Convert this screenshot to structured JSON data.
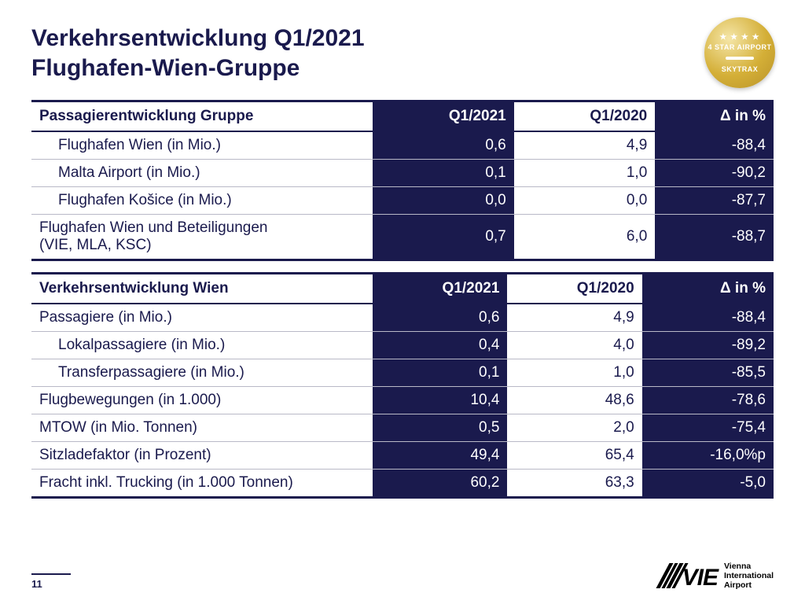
{
  "title_line1": "Verkehrsentwicklung Q1/2021",
  "title_line2": "Flughafen-Wien-Gruppe",
  "badge": {
    "top_text": "4 STAR AIRPORT",
    "bottom_text": "SKYTRAX"
  },
  "colors": {
    "brand_dark": "#1a1a4d",
    "background": "#ffffff",
    "row_border": "#b9b9c7",
    "gold1": "#f5e6a8",
    "gold2": "#d4af37"
  },
  "table1": {
    "headers": [
      "Passagierentwicklung Gruppe",
      "Q1/2021",
      "Q1/2020",
      "Δ in %"
    ],
    "highlight_cols": [
      1,
      3
    ],
    "rows": [
      {
        "label": "Flughafen Wien (in Mio.)",
        "indent": true,
        "v": [
          "0,6",
          "4,9",
          "-88,4"
        ]
      },
      {
        "label": "Malta Airport (in Mio.)",
        "indent": true,
        "v": [
          "0,1",
          "1,0",
          "-90,2"
        ]
      },
      {
        "label": "Flughafen Košice (in Mio.)",
        "indent": true,
        "v": [
          "0,0",
          "0,0",
          "-87,7"
        ]
      },
      {
        "label": "Flughafen Wien und Beteiligungen\n(VIE, MLA, KSC)",
        "indent": false,
        "v": [
          "0,7",
          "6,0",
          "-88,7"
        ]
      }
    ]
  },
  "table2": {
    "headers": [
      "Verkehrsentwicklung Wien",
      "Q1/2021",
      "Q1/2020",
      "Δ in %"
    ],
    "highlight_cols": [
      1,
      3
    ],
    "rows": [
      {
        "label": "Passagiere (in Mio.)",
        "indent": false,
        "v": [
          "0,6",
          "4,9",
          "-88,4"
        ]
      },
      {
        "label": "Lokalpassagiere (in Mio.)",
        "indent": true,
        "v": [
          "0,4",
          "4,0",
          "-89,2"
        ]
      },
      {
        "label": "Transferpassagiere (in Mio.)",
        "indent": true,
        "v": [
          "0,1",
          "1,0",
          "-85,5"
        ]
      },
      {
        "label": "Flugbewegungen (in 1.000)",
        "indent": false,
        "v": [
          "10,4",
          "48,6",
          "-78,6"
        ]
      },
      {
        "label": "MTOW (in Mio. Tonnen)",
        "indent": false,
        "v": [
          "0,5",
          "2,0",
          "-75,4"
        ]
      },
      {
        "label": "Sitzladefaktor (in Prozent)",
        "indent": false,
        "v": [
          "49,4",
          "65,4",
          "-16,0%p"
        ]
      },
      {
        "label": "Fracht inkl. Trucking (in 1.000 Tonnen)",
        "indent": false,
        "v": [
          "60,2",
          "63,3",
          "-5,0"
        ]
      }
    ]
  },
  "page_number": "11",
  "logo": {
    "mark_text": "VIE",
    "sub_line1": "Vienna",
    "sub_line2": "International",
    "sub_line3": "Airport"
  }
}
